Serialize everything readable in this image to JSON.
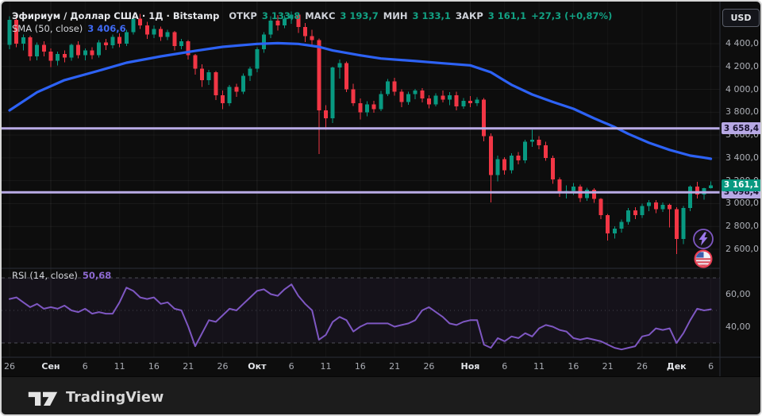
{
  "header": {
    "symbol_title": "Эфириум / Доллар США · 1Д · Bitstamp",
    "ohlc": {
      "open_label": "ОТКР",
      "open": "3 133,8",
      "high_label": "МАКС",
      "high": "3 193,7",
      "low_label": "МИН",
      "low": "3 133,1",
      "close_label": "ЗАКР",
      "close": "3 161,1",
      "change": "+27,3 (+0,87%)"
    },
    "sma": {
      "label": "SMA (50, close)",
      "value": "3 406,6"
    }
  },
  "rsi_pane": {
    "label": "RSI (14, close)",
    "value": "50,68",
    "axis_ticks": [
      {
        "value": 60,
        "label": "60,00"
      },
      {
        "value": 40,
        "label": "40,00"
      }
    ],
    "bands": [
      70,
      50,
      30
    ]
  },
  "price_axis": {
    "currency_button": "USD",
    "ticks": [
      {
        "price": 4400,
        "label": "4 400,0"
      },
      {
        "price": 4200,
        "label": "4 200,0"
      },
      {
        "price": 4000,
        "label": "4 000,0"
      },
      {
        "price": 3800,
        "label": "3 800,0"
      },
      {
        "price": 3600,
        "label": "3 600,0"
      },
      {
        "price": 3400,
        "label": "3 400,0"
      },
      {
        "price": 3200,
        "label": "3 200,0"
      },
      {
        "price": 3000,
        "label": "3 000,0"
      },
      {
        "price": 2800,
        "label": "2 800,0"
      },
      {
        "price": 2600,
        "label": "2 600,0"
      }
    ],
    "price_labels": [
      {
        "label": "3 658,4",
        "price": 3658.4,
        "style": "level"
      },
      {
        "label": "3 098,4",
        "price": 3098.4,
        "style": "level"
      },
      {
        "label": "3 161,1",
        "price": 3161.1,
        "style": "last"
      }
    ]
  },
  "time_axis": {
    "ticks": [
      {
        "label": "26",
        "day": 0
      },
      {
        "label": "Сен",
        "day": 6,
        "month": true
      },
      {
        "label": "6",
        "day": 11
      },
      {
        "label": "11",
        "day": 16
      },
      {
        "label": "16",
        "day": 21
      },
      {
        "label": "21",
        "day": 26
      },
      {
        "label": "26",
        "day": 31
      },
      {
        "label": "Окт",
        "day": 36,
        "month": true
      },
      {
        "label": "6",
        "day": 41
      },
      {
        "label": "11",
        "day": 46
      },
      {
        "label": "16",
        "day": 51
      },
      {
        "label": "21",
        "day": 56
      },
      {
        "label": "26",
        "day": 61
      },
      {
        "label": "Ноя",
        "day": 67,
        "month": true
      },
      {
        "label": "6",
        "day": 72
      },
      {
        "label": "11",
        "day": 77
      },
      {
        "label": "16",
        "day": 82
      },
      {
        "label": "21",
        "day": 87
      },
      {
        "label": "26",
        "day": 92
      },
      {
        "label": "Дек",
        "day": 97,
        "month": true
      },
      {
        "label": "6",
        "day": 102
      }
    ]
  },
  "icons": [
    {
      "name": "lightning-bolt-icon"
    },
    {
      "name": "flag-event-icon"
    }
  ],
  "footer": {
    "logo_text": "TradingView"
  },
  "colors": {
    "up": "#089981",
    "down": "#f23645",
    "sma": "#2d62f5",
    "level": "#b9abe6",
    "rsi": "#7e57c2",
    "grid": "#ffffff",
    "separator": "#2a2e39",
    "band_dash": "#8b8e99"
  },
  "chart_data": {
    "type": "candlestick",
    "title": "Эфириум / Доллар США · 1Д · Bitstamp",
    "symbol": "ETH/USD",
    "timeframe": "1Д",
    "exchange": "Bitstamp",
    "last_price": 3161.1,
    "sma50_last": 3406.6,
    "rsi_last": 50.68,
    "levels": [
      3658.4,
      3098.4
    ],
    "price_range_visible": [
      2540,
      4700
    ],
    "rsi_range_visible": [
      20,
      80
    ],
    "candles": [
      [
        4390,
        4640,
        4350,
        4610
      ],
      [
        4610,
        4655,
        4370,
        4400
      ],
      [
        4400,
        4480,
        4340,
        4455
      ],
      [
        4455,
        4470,
        4250,
        4290
      ],
      [
        4290,
        4410,
        4255,
        4390
      ],
      [
        4390,
        4420,
        4290,
        4330
      ],
      [
        4330,
        4360,
        4195,
        4250
      ],
      [
        4250,
        4330,
        4210,
        4310
      ],
      [
        4310,
        4340,
        4235,
        4280
      ],
      [
        4280,
        4400,
        4250,
        4390
      ],
      [
        4390,
        4420,
        4270,
        4300
      ],
      [
        4300,
        4360,
        4255,
        4340
      ],
      [
        4340,
        4370,
        4265,
        4300
      ],
      [
        4300,
        4430,
        4280,
        4410
      ],
      [
        4410,
        4440,
        4345,
        4385
      ],
      [
        4385,
        4480,
        4360,
        4460
      ],
      [
        4460,
        4490,
        4370,
        4400
      ],
      [
        4400,
        4520,
        4380,
        4500
      ],
      [
        4500,
        4650,
        4480,
        4620
      ],
      [
        4620,
        4660,
        4530,
        4560
      ],
      [
        4560,
        4590,
        4440,
        4480
      ],
      [
        4480,
        4560,
        4450,
        4530
      ],
      [
        4530,
        4550,
        4425,
        4460
      ],
      [
        4460,
        4520,
        4430,
        4500
      ],
      [
        4500,
        4510,
        4340,
        4380
      ],
      [
        4380,
        4440,
        4350,
        4420
      ],
      [
        4420,
        4430,
        4260,
        4300
      ],
      [
        4300,
        4310,
        4130,
        4180
      ],
      [
        4180,
        4220,
        4020,
        4080
      ],
      [
        4080,
        4170,
        4040,
        4150
      ],
      [
        4150,
        4160,
        3905,
        3950
      ],
      [
        3950,
        3990,
        3825,
        3880
      ],
      [
        3880,
        4040,
        3855,
        4020
      ],
      [
        4020,
        4050,
        3935,
        3980
      ],
      [
        3980,
        4140,
        3960,
        4120
      ],
      [
        4120,
        4200,
        4075,
        4180
      ],
      [
        4180,
        4370,
        4150,
        4350
      ],
      [
        4350,
        4500,
        4320,
        4480
      ],
      [
        4480,
        4640,
        4450,
        4600
      ],
      [
        4600,
        4650,
        4515,
        4560
      ],
      [
        4560,
        4645,
        4535,
        4620
      ],
      [
        4620,
        4680,
        4575,
        4655
      ],
      [
        4655,
        4675,
        4495,
        4545
      ],
      [
        4545,
        4580,
        4415,
        4465
      ],
      [
        4465,
        4520,
        4375,
        4430
      ],
      [
        4430,
        4445,
        3435,
        3815
      ],
      [
        3815,
        3860,
        3645,
        3745
      ],
      [
        3745,
        4200,
        3705,
        4190
      ],
      [
        4190,
        4260,
        4095,
        4230
      ],
      [
        4230,
        4245,
        3975,
        4000
      ],
      [
        4000,
        4050,
        3855,
        3880
      ],
      [
        3880,
        3920,
        3735,
        3800
      ],
      [
        3800,
        3895,
        3765,
        3870
      ],
      [
        3870,
        3900,
        3795,
        3825
      ],
      [
        3825,
        3985,
        3810,
        3960
      ],
      [
        3960,
        4090,
        3940,
        4070
      ],
      [
        4070,
        4100,
        3945,
        3980
      ],
      [
        3980,
        4000,
        3845,
        3890
      ],
      [
        3890,
        3980,
        3865,
        3960
      ],
      [
        3960,
        4005,
        3915,
        3990
      ],
      [
        3990,
        4010,
        3885,
        3920
      ],
      [
        3920,
        3950,
        3835,
        3870
      ],
      [
        3870,
        3965,
        3850,
        3945
      ],
      [
        3945,
        3990,
        3885,
        3910
      ],
      [
        3910,
        3975,
        3860,
        3950
      ],
      [
        3950,
        3980,
        3815,
        3850
      ],
      [
        3850,
        3925,
        3830,
        3900
      ],
      [
        3900,
        3940,
        3845,
        3880
      ],
      [
        3880,
        3930,
        3855,
        3910
      ],
      [
        3910,
        3925,
        3545,
        3590
      ],
      [
        3590,
        3615,
        3010,
        3250
      ],
      [
        3250,
        3420,
        3195,
        3390
      ],
      [
        3390,
        3405,
        3255,
        3290
      ],
      [
        3290,
        3440,
        3265,
        3420
      ],
      [
        3420,
        3450,
        3345,
        3380
      ],
      [
        3380,
        3560,
        3355,
        3540
      ],
      [
        3540,
        3645,
        3495,
        3560
      ],
      [
        3560,
        3590,
        3475,
        3510
      ],
      [
        3510,
        3540,
        3375,
        3400
      ],
      [
        3400,
        3420,
        3175,
        3210
      ],
      [
        3210,
        3230,
        3060,
        3090
      ],
      [
        3090,
        3160,
        3045,
        3110
      ],
      [
        3110,
        3180,
        3075,
        3150
      ],
      [
        3150,
        3165,
        3015,
        3050
      ],
      [
        3050,
        3140,
        3025,
        3120
      ],
      [
        3120,
        3135,
        3005,
        3040
      ],
      [
        3040,
        3050,
        2865,
        2900
      ],
      [
        2900,
        2910,
        2675,
        2740
      ],
      [
        2740,
        2800,
        2695,
        2780
      ],
      [
        2780,
        2860,
        2745,
        2840
      ],
      [
        2840,
        2960,
        2815,
        2940
      ],
      [
        2940,
        2970,
        2865,
        2900
      ],
      [
        2900,
        3000,
        2875,
        2980
      ],
      [
        2980,
        3030,
        2935,
        3010
      ],
      [
        3010,
        3030,
        2915,
        2950
      ],
      [
        2950,
        3010,
        2925,
        2990
      ],
      [
        2990,
        3000,
        2790,
        2950
      ],
      [
        2950,
        2970,
        2560,
        2690
      ],
      [
        2690,
        2980,
        2645,
        2960
      ],
      [
        2960,
        3160,
        2935,
        3150
      ],
      [
        3150,
        3190,
        3045,
        3080
      ],
      [
        3080,
        3140,
        3035,
        3134
      ],
      [
        3133.8,
        3193.7,
        3133.1,
        3161.1
      ]
    ],
    "sma50_points": [
      [
        0,
        3816
      ],
      [
        4,
        3975
      ],
      [
        8,
        4081
      ],
      [
        13,
        4164
      ],
      [
        17,
        4233
      ],
      [
        22,
        4289
      ],
      [
        27,
        4337
      ],
      [
        31,
        4372
      ],
      [
        36,
        4398
      ],
      [
        39,
        4404
      ],
      [
        42,
        4398
      ],
      [
        45,
        4372
      ],
      [
        47,
        4340
      ],
      [
        51,
        4298
      ],
      [
        54,
        4270
      ],
      [
        59,
        4248
      ],
      [
        63,
        4228
      ],
      [
        67,
        4210
      ],
      [
        70,
        4150
      ],
      [
        73,
        4040
      ],
      [
        76,
        3955
      ],
      [
        79,
        3890
      ],
      [
        82,
        3830
      ],
      [
        85,
        3747
      ],
      [
        88,
        3670
      ],
      [
        90,
        3610
      ],
      [
        93,
        3532
      ],
      [
        96,
        3470
      ],
      [
        99,
        3420
      ],
      [
        101,
        3402
      ],
      [
        102,
        3392
      ]
    ],
    "rsi14": [
      57,
      58,
      55,
      52,
      54,
      51,
      52,
      51,
      53,
      50,
      49,
      51,
      48,
      49,
      48,
      48,
      55,
      64,
      62,
      58,
      57,
      58,
      54,
      55,
      51,
      50,
      40,
      28,
      36,
      44,
      43,
      47,
      51,
      50,
      54,
      58,
      62,
      63,
      60,
      59,
      63,
      66,
      59,
      54,
      50,
      32,
      35,
      43,
      46,
      44,
      37,
      40,
      42,
      42,
      42,
      42,
      40,
      41,
      42,
      44,
      50,
      52,
      49,
      46,
      42,
      41,
      43,
      44,
      44,
      29,
      27,
      33,
      31,
      34,
      33,
      36,
      34,
      39,
      41,
      40,
      38,
      37,
      33,
      32,
      33,
      32,
      31,
      29,
      27,
      26,
      27,
      28,
      34,
      35,
      39,
      38,
      39,
      30,
      36,
      44,
      51,
      50,
      50.68
    ]
  }
}
